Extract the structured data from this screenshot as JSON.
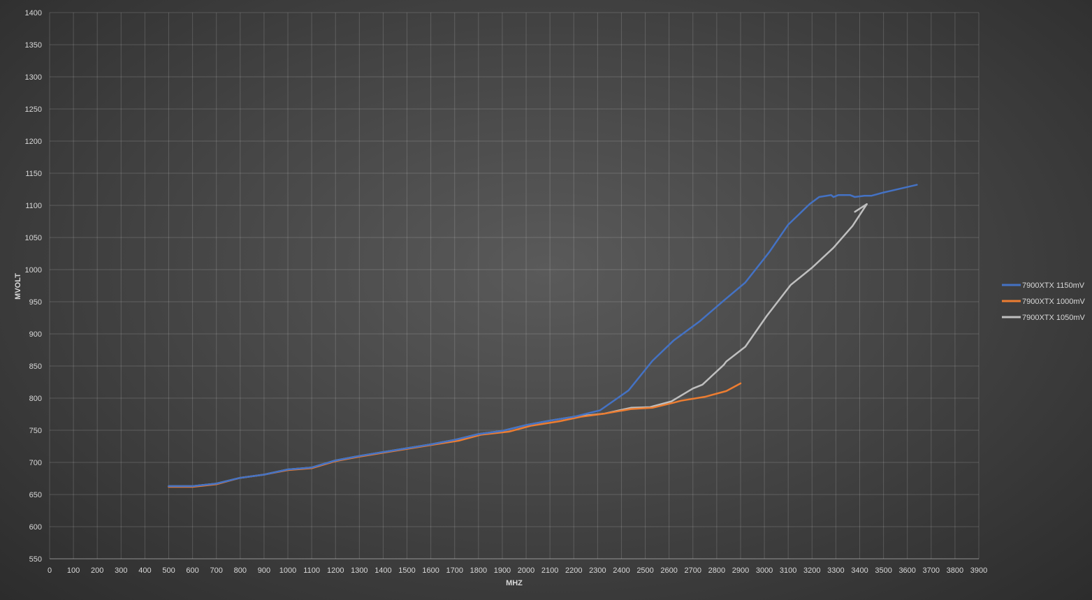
{
  "chart_data": {
    "type": "line",
    "xlabel": "MHZ",
    "ylabel": "MVOLT",
    "xlim": [
      0,
      3900
    ],
    "ylim": [
      550,
      1400
    ],
    "xstep": 100,
    "ystep": 50,
    "grid": true,
    "legend": "right",
    "series": [
      {
        "name": "7900XTX 1150mV",
        "color": "#4472c4",
        "points": [
          [
            500,
            663
          ],
          [
            600,
            663
          ],
          [
            700,
            667
          ],
          [
            800,
            676
          ],
          [
            900,
            681
          ],
          [
            1000,
            689
          ],
          [
            1100,
            692
          ],
          [
            1200,
            703
          ],
          [
            1300,
            710
          ],
          [
            1400,
            716
          ],
          [
            1500,
            722
          ],
          [
            1600,
            728
          ],
          [
            1700,
            735
          ],
          [
            1800,
            744
          ],
          [
            1900,
            749
          ],
          [
            2000,
            758
          ],
          [
            2100,
            765
          ],
          [
            2200,
            771
          ],
          [
            2310,
            781
          ],
          [
            2430,
            812
          ],
          [
            2530,
            858
          ],
          [
            2620,
            890
          ],
          [
            2730,
            920
          ],
          [
            2830,
            952
          ],
          [
            2920,
            980
          ],
          [
            3020,
            1027
          ],
          [
            3100,
            1070
          ],
          [
            3190,
            1102
          ],
          [
            3230,
            1113
          ],
          [
            3280,
            1116
          ],
          [
            3290,
            1113
          ],
          [
            3310,
            1116
          ],
          [
            3360,
            1116
          ],
          [
            3380,
            1113
          ],
          [
            3420,
            1115
          ],
          [
            3450,
            1115
          ],
          [
            3500,
            1120
          ],
          [
            3640,
            1132
          ]
        ]
      },
      {
        "name": "7900XTX 1000mV",
        "color": "#ed7d31",
        "points": [
          [
            500,
            662
          ],
          [
            600,
            662
          ],
          [
            700,
            666
          ],
          [
            800,
            676
          ],
          [
            900,
            681
          ],
          [
            1000,
            688
          ],
          [
            1100,
            691
          ],
          [
            1200,
            702
          ],
          [
            1300,
            709
          ],
          [
            1400,
            715
          ],
          [
            1500,
            721
          ],
          [
            1600,
            727
          ],
          [
            1720,
            734
          ],
          [
            1810,
            743
          ],
          [
            1930,
            748
          ],
          [
            2020,
            757
          ],
          [
            2140,
            764
          ],
          [
            2230,
            771
          ],
          [
            2330,
            776
          ],
          [
            2440,
            783
          ],
          [
            2530,
            785
          ],
          [
            2620,
            793
          ],
          [
            2650,
            796
          ],
          [
            2750,
            802
          ],
          [
            2840,
            811
          ],
          [
            2900,
            823
          ]
        ]
      },
      {
        "name": "7900XTX 1050mV",
        "color": "#bfbfbf",
        "points": [
          [
            500,
            663
          ],
          [
            600,
            663
          ],
          [
            700,
            667
          ],
          [
            800,
            676
          ],
          [
            900,
            681
          ],
          [
            1000,
            689
          ],
          [
            1100,
            692
          ],
          [
            1200,
            703
          ],
          [
            1300,
            710
          ],
          [
            1400,
            716
          ],
          [
            1500,
            722
          ],
          [
            1600,
            728
          ],
          [
            1700,
            735
          ],
          [
            1800,
            744
          ],
          [
            1900,
            749
          ],
          [
            2000,
            758
          ],
          [
            2100,
            765
          ],
          [
            2200,
            771
          ],
          [
            2330,
            776
          ],
          [
            2440,
            785
          ],
          [
            2520,
            786
          ],
          [
            2610,
            795
          ],
          [
            2700,
            815
          ],
          [
            2740,
            821
          ],
          [
            2830,
            852
          ],
          [
            2840,
            857
          ],
          [
            2920,
            880
          ],
          [
            3010,
            928
          ],
          [
            3110,
            976
          ],
          [
            3200,
            1003
          ],
          [
            3290,
            1034
          ],
          [
            3370,
            1068
          ],
          [
            3430,
            1102
          ],
          [
            3380,
            1090
          ]
        ]
      }
    ]
  }
}
